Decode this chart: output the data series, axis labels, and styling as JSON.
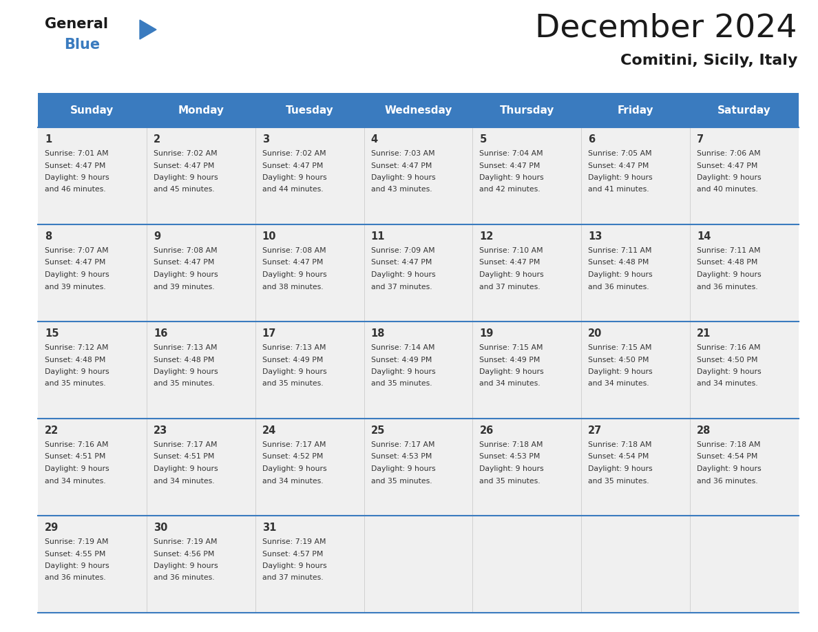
{
  "title": "December 2024",
  "subtitle": "Comitini, Sicily, Italy",
  "header_color": "#3a7bbf",
  "header_text_color": "#ffffff",
  "cell_bg_color": "#f0f0f0",
  "border_color": "#3a7bbf",
  "text_color": "#333333",
  "days_of_week": [
    "Sunday",
    "Monday",
    "Tuesday",
    "Wednesday",
    "Thursday",
    "Friday",
    "Saturday"
  ],
  "calendar": [
    [
      {
        "day": "1",
        "sunrise": "7:01 AM",
        "sunset": "4:47 PM",
        "dl_hours": "9",
        "dl_min": "46"
      },
      {
        "day": "2",
        "sunrise": "7:02 AM",
        "sunset": "4:47 PM",
        "dl_hours": "9",
        "dl_min": "45"
      },
      {
        "day": "3",
        "sunrise": "7:02 AM",
        "sunset": "4:47 PM",
        "dl_hours": "9",
        "dl_min": "44"
      },
      {
        "day": "4",
        "sunrise": "7:03 AM",
        "sunset": "4:47 PM",
        "dl_hours": "9",
        "dl_min": "43"
      },
      {
        "day": "5",
        "sunrise": "7:04 AM",
        "sunset": "4:47 PM",
        "dl_hours": "9",
        "dl_min": "42"
      },
      {
        "day": "6",
        "sunrise": "7:05 AM",
        "sunset": "4:47 PM",
        "dl_hours": "9",
        "dl_min": "41"
      },
      {
        "day": "7",
        "sunrise": "7:06 AM",
        "sunset": "4:47 PM",
        "dl_hours": "9",
        "dl_min": "40"
      }
    ],
    [
      {
        "day": "8",
        "sunrise": "7:07 AM",
        "sunset": "4:47 PM",
        "dl_hours": "9",
        "dl_min": "39"
      },
      {
        "day": "9",
        "sunrise": "7:08 AM",
        "sunset": "4:47 PM",
        "dl_hours": "9",
        "dl_min": "39"
      },
      {
        "day": "10",
        "sunrise": "7:08 AM",
        "sunset": "4:47 PM",
        "dl_hours": "9",
        "dl_min": "38"
      },
      {
        "day": "11",
        "sunrise": "7:09 AM",
        "sunset": "4:47 PM",
        "dl_hours": "9",
        "dl_min": "37"
      },
      {
        "day": "12",
        "sunrise": "7:10 AM",
        "sunset": "4:47 PM",
        "dl_hours": "9",
        "dl_min": "37"
      },
      {
        "day": "13",
        "sunrise": "7:11 AM",
        "sunset": "4:48 PM",
        "dl_hours": "9",
        "dl_min": "36"
      },
      {
        "day": "14",
        "sunrise": "7:11 AM",
        "sunset": "4:48 PM",
        "dl_hours": "9",
        "dl_min": "36"
      }
    ],
    [
      {
        "day": "15",
        "sunrise": "7:12 AM",
        "sunset": "4:48 PM",
        "dl_hours": "9",
        "dl_min": "35"
      },
      {
        "day": "16",
        "sunrise": "7:13 AM",
        "sunset": "4:48 PM",
        "dl_hours": "9",
        "dl_min": "35"
      },
      {
        "day": "17",
        "sunrise": "7:13 AM",
        "sunset": "4:49 PM",
        "dl_hours": "9",
        "dl_min": "35"
      },
      {
        "day": "18",
        "sunrise": "7:14 AM",
        "sunset": "4:49 PM",
        "dl_hours": "9",
        "dl_min": "35"
      },
      {
        "day": "19",
        "sunrise": "7:15 AM",
        "sunset": "4:49 PM",
        "dl_hours": "9",
        "dl_min": "34"
      },
      {
        "day": "20",
        "sunrise": "7:15 AM",
        "sunset": "4:50 PM",
        "dl_hours": "9",
        "dl_min": "34"
      },
      {
        "day": "21",
        "sunrise": "7:16 AM",
        "sunset": "4:50 PM",
        "dl_hours": "9",
        "dl_min": "34"
      }
    ],
    [
      {
        "day": "22",
        "sunrise": "7:16 AM",
        "sunset": "4:51 PM",
        "dl_hours": "9",
        "dl_min": "34"
      },
      {
        "day": "23",
        "sunrise": "7:17 AM",
        "sunset": "4:51 PM",
        "dl_hours": "9",
        "dl_min": "34"
      },
      {
        "day": "24",
        "sunrise": "7:17 AM",
        "sunset": "4:52 PM",
        "dl_hours": "9",
        "dl_min": "34"
      },
      {
        "day": "25",
        "sunrise": "7:17 AM",
        "sunset": "4:53 PM",
        "dl_hours": "9",
        "dl_min": "35"
      },
      {
        "day": "26",
        "sunrise": "7:18 AM",
        "sunset": "4:53 PM",
        "dl_hours": "9",
        "dl_min": "35"
      },
      {
        "day": "27",
        "sunrise": "7:18 AM",
        "sunset": "4:54 PM",
        "dl_hours": "9",
        "dl_min": "35"
      },
      {
        "day": "28",
        "sunrise": "7:18 AM",
        "sunset": "4:54 PM",
        "dl_hours": "9",
        "dl_min": "36"
      }
    ],
    [
      {
        "day": "29",
        "sunrise": "7:19 AM",
        "sunset": "4:55 PM",
        "dl_hours": "9",
        "dl_min": "36"
      },
      {
        "day": "30",
        "sunrise": "7:19 AM",
        "sunset": "4:56 PM",
        "dl_hours": "9",
        "dl_min": "36"
      },
      {
        "day": "31",
        "sunrise": "7:19 AM",
        "sunset": "4:57 PM",
        "dl_hours": "9",
        "dl_min": "37"
      },
      null,
      null,
      null,
      null
    ]
  ],
  "figsize": [
    11.88,
    9.18
  ],
  "dpi": 100
}
